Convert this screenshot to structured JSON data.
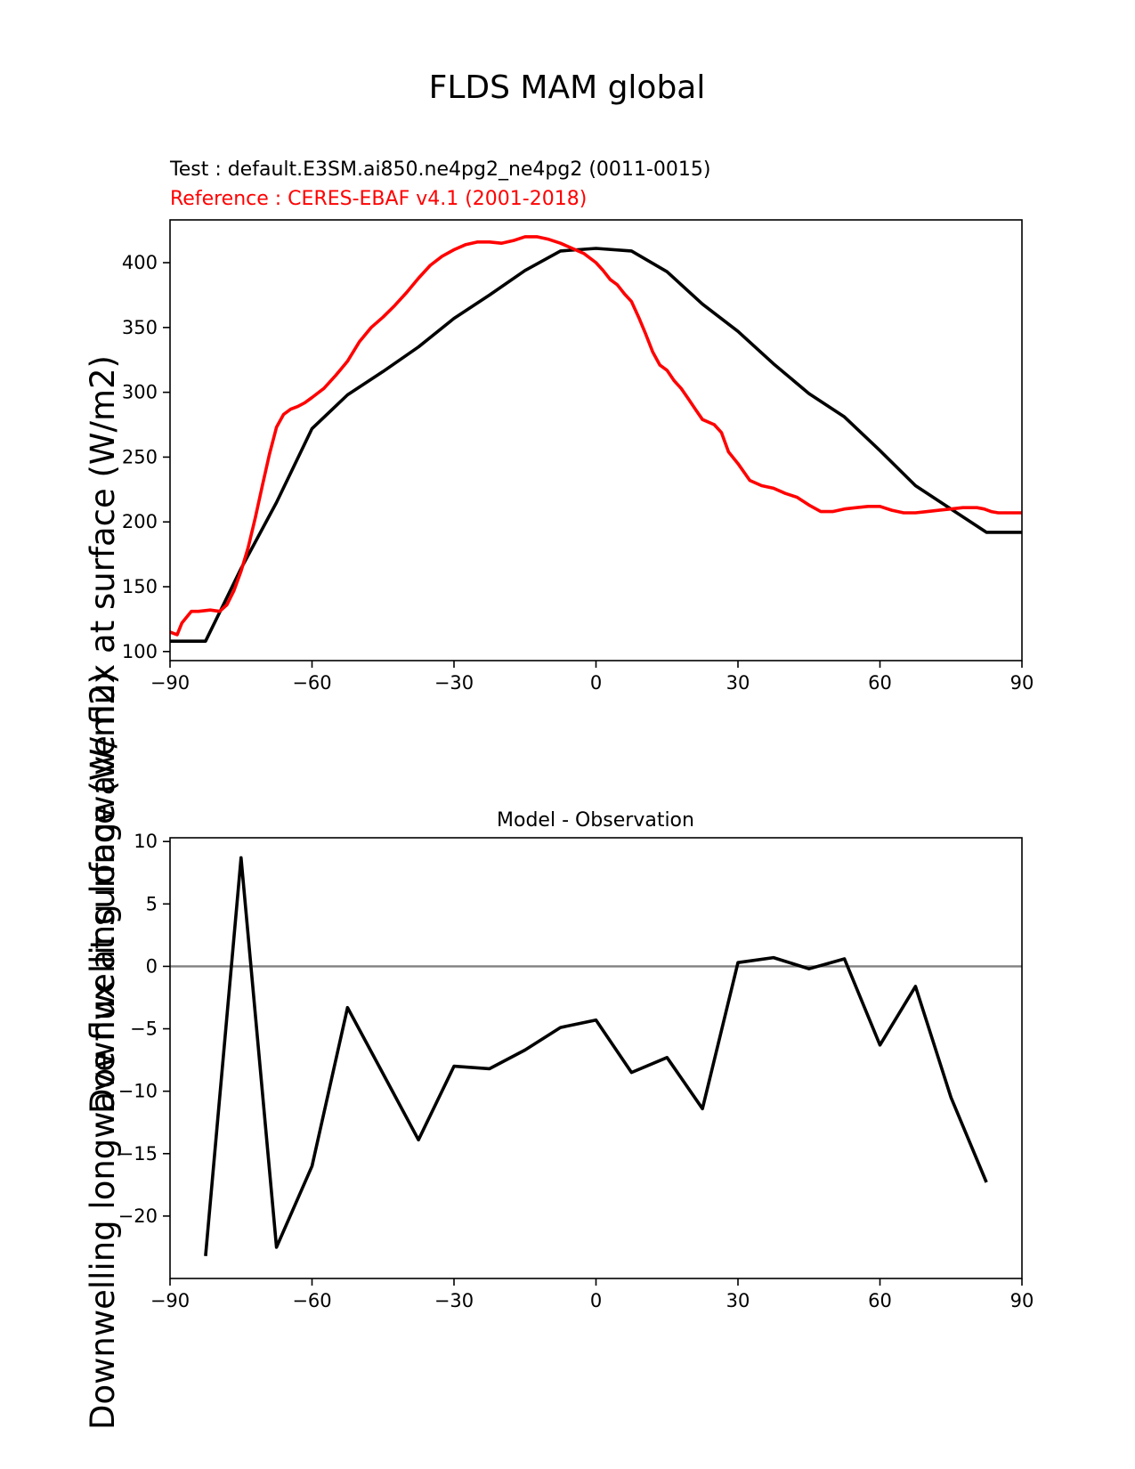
{
  "figure": {
    "title": "FLDS MAM global",
    "ylabel": "Downwelling longwave flux at surface (W/m2)",
    "colors": {
      "test": "#000000",
      "reference": "#ff0000",
      "zero_line": "#808080"
    }
  },
  "chart_data": [
    {
      "type": "line",
      "test_label": "Test : default.E3SM.ai850.ne4pg2_ne4pg2 (0011-0015)",
      "reference_label": "Reference : CERES-EBAF v4.1 (2001-2018)",
      "xlim": [
        -90,
        90
      ],
      "ylim": [
        93,
        433
      ],
      "xticks": [
        "−90",
        "−60",
        "−30",
        "0",
        "30",
        "60",
        "90"
      ],
      "xtick_values": [
        -90,
        -60,
        -30,
        0,
        30,
        60,
        90
      ],
      "yticks": [
        "100",
        "150",
        "200",
        "250",
        "300",
        "350",
        "400"
      ],
      "ytick_values": [
        100,
        150,
        200,
        250,
        300,
        350,
        400
      ],
      "series": [
        {
          "color": "#000000",
          "x": [
            -90,
            -82.5,
            -75,
            -67.5,
            -60,
            -52.5,
            -45,
            -37.5,
            -30,
            -22.5,
            -15,
            -7.5,
            0,
            7.5,
            15,
            22.5,
            30,
            37.5,
            45,
            52.5,
            60,
            67.5,
            75,
            82.5,
            90
          ],
          "y": [
            108,
            108,
            164,
            215,
            272,
            298,
            316,
            335,
            357,
            375,
            394,
            409,
            411,
            409,
            393,
            368,
            347,
            322,
            299,
            281,
            255,
            228,
            210,
            192,
            192
          ]
        },
        {
          "color": "#ff0000",
          "x": [
            -90,
            -88.5,
            -87.5,
            -85.5,
            -84,
            -81.5,
            -79.5,
            -78,
            -76.5,
            -75,
            -73.5,
            -72,
            -70.5,
            -69,
            -67.5,
            -66,
            -64.5,
            -63,
            -61.5,
            -60,
            -57.5,
            -55,
            -52.5,
            -50,
            -47.5,
            -45,
            -42.5,
            -40,
            -37.5,
            -35,
            -32.5,
            -30,
            -27.5,
            -25,
            -22.5,
            -20,
            -17.5,
            -15,
            -12.5,
            -10,
            -7.5,
            -5,
            -2.5,
            0,
            1.5,
            3,
            4.5,
            6,
            7.5,
            9,
            10.5,
            12,
            13.5,
            15,
            16.5,
            18,
            19.5,
            21,
            22.5,
            25,
            26.5,
            28,
            30,
            32.5,
            35,
            37.5,
            40,
            42.5,
            45,
            47.5,
            50,
            52.5,
            55,
            57.5,
            60,
            62.5,
            65,
            67.5,
            70,
            72.5,
            75,
            77.5,
            79,
            80.5,
            82,
            83.5,
            85,
            86.5,
            88,
            89,
            90
          ],
          "y": [
            115,
            113,
            122,
            131,
            131,
            132,
            131,
            136,
            147,
            162,
            180,
            203,
            228,
            252,
            273,
            283,
            287,
            289,
            292,
            296,
            303,
            313,
            324,
            339,
            350,
            358,
            367,
            377,
            388,
            398,
            405,
            410,
            414,
            416,
            416,
            415,
            417,
            420,
            420,
            418,
            415,
            411,
            407,
            400,
            394,
            387,
            383,
            376,
            370,
            358,
            345,
            331,
            321,
            317,
            309,
            303,
            295,
            287,
            279,
            275,
            269,
            254,
            245,
            232,
            228,
            226,
            222,
            219,
            213,
            208,
            208,
            210,
            211,
            212,
            212,
            209,
            207,
            207,
            208,
            209,
            210,
            211,
            211,
            211,
            210,
            208,
            207,
            207,
            207,
            207,
            207
          ]
        }
      ]
    },
    {
      "type": "line",
      "title": "Model - Observation",
      "xlim": [
        -90,
        90
      ],
      "ylim": [
        -25,
        10.3
      ],
      "xticks": [
        "−90",
        "−60",
        "−30",
        "0",
        "30",
        "60",
        "90"
      ],
      "xtick_values": [
        -90,
        -60,
        -30,
        0,
        30,
        60,
        90
      ],
      "yticks": [
        "10",
        "5",
        "0",
        "−5",
        "−10",
        "−15",
        "−20"
      ],
      "ytick_values": [
        10,
        5,
        0,
        -5,
        -10,
        -15,
        -20
      ],
      "reference_line": 0,
      "series": [
        {
          "color": "#000000",
          "x": [
            -82.5,
            -75,
            -67.5,
            -60,
            -52.5,
            -45,
            -37.5,
            -30,
            -22.5,
            -15,
            -7.5,
            0,
            7.5,
            15,
            22.5,
            30,
            37.5,
            45,
            52.5,
            60,
            67.5,
            75,
            82.5
          ],
          "y": [
            -23.2,
            8.7,
            -22.5,
            -16.0,
            -3.3,
            -8.6,
            -13.9,
            -8.0,
            -8.2,
            -6.7,
            -4.9,
            -4.3,
            -8.5,
            -7.3,
            -11.4,
            0.3,
            0.7,
            -0.2,
            0.6,
            -6.3,
            -1.6,
            -10.5,
            -17.3
          ]
        }
      ]
    }
  ]
}
